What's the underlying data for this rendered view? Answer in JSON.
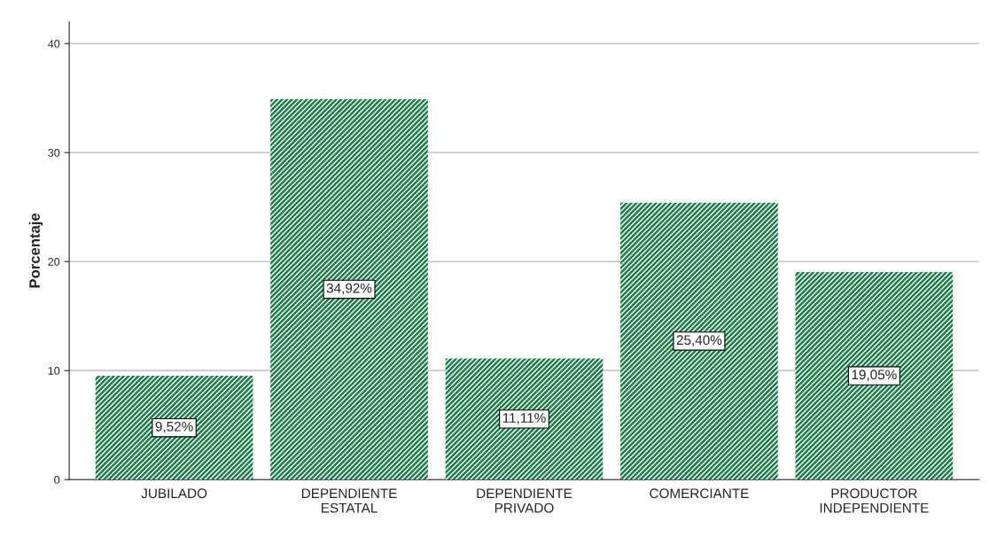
{
  "chart_data": {
    "type": "bar",
    "ylabel": "Porcentaje",
    "categories": [
      "JUBILADO",
      "DEPENDIENTE ESTATAL",
      "DEPENDIENTE PRIVADO",
      "COMERCIANTE",
      "PRODUCTOR INDEPENDIENTE"
    ],
    "values": [
      9.52,
      34.92,
      11.11,
      25.4,
      19.05
    ],
    "value_labels": [
      "9,52%",
      "34,92%",
      "11,11%",
      "25,40%",
      "19,05%"
    ],
    "color": "#1e7d4a",
    "ylim": [
      0,
      42
    ],
    "yticks": [
      0,
      10,
      20,
      30,
      40
    ],
    "grid": "y"
  }
}
